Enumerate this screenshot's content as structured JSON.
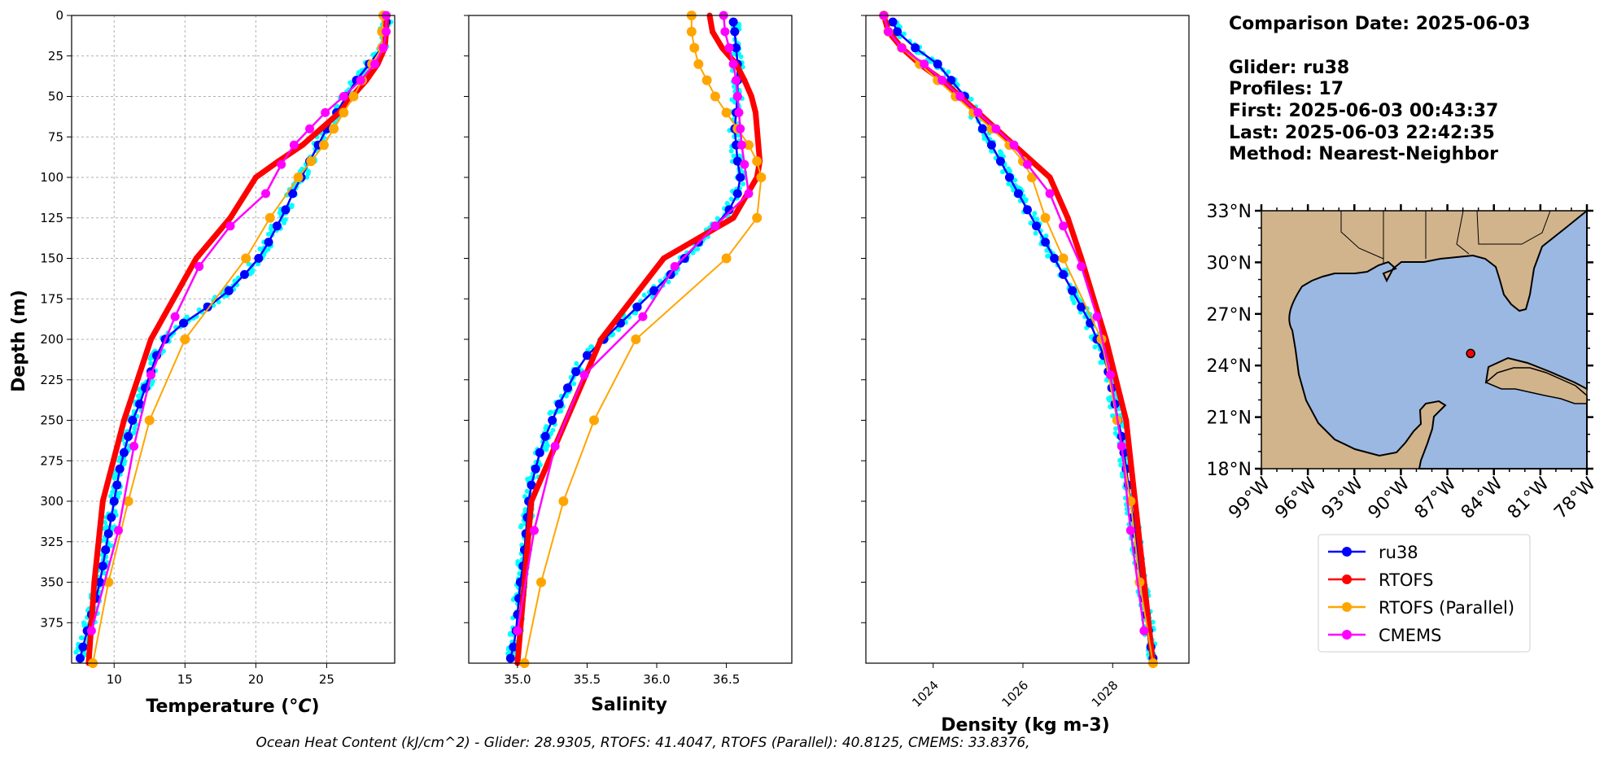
{
  "info": {
    "comparison_date": "Comparison Date: 2025-06-03",
    "glider": "Glider: ru38",
    "profiles": "Profiles: 17",
    "first": "First: 2025-06-03 00:43:37",
    "last": "Last: 2025-06-03 22:42:35",
    "method": "Method: Nearest-Neighbor"
  },
  "footer": "Ocean Heat Content (kJ/cm^2) - Glider: 28.9305,  RTOFS: 41.4047,  RTOFS (Parallel): 40.8125,  CMEMS: 33.8376,",
  "colors": {
    "glider": "#0000ff",
    "glider_raw": "#00ffff",
    "rtofs": "#ff0000",
    "rtofs_parallel": "#ffa500",
    "cmems": "#ff00ff",
    "land": "#d2b48c",
    "ocean": "#9bb8e2",
    "grid": "#b0b0b0"
  },
  "legend": [
    "ru38",
    "RTOFS",
    "RTOFS (Parallel)",
    "CMEMS"
  ],
  "map": {
    "lat_ticks": [
      "33°N",
      "30°N",
      "27°N",
      "24°N",
      "21°N",
      "18°N"
    ],
    "lon_ticks": [
      "99°W",
      "96°W",
      "93°W",
      "90°W",
      "87°W",
      "84°W",
      "81°W",
      "78°W"
    ],
    "lat_range": [
      18,
      33
    ],
    "lon_range": [
      -99,
      -78
    ],
    "glider_position": [
      -85.5,
      24.7
    ]
  },
  "chart_data": [
    {
      "type": "line",
      "xlabel": "Temperature (°C)",
      "ylabel": "Depth (m)",
      "xlim": [
        7,
        29.8
      ],
      "ylim": [
        400,
        0
      ],
      "xticks": [
        10,
        15,
        20,
        25
      ],
      "yticks": [
        0,
        25,
        50,
        75,
        100,
        125,
        150,
        175,
        200,
        225,
        250,
        275,
        300,
        325,
        350,
        375
      ],
      "grid": true,
      "series": [
        {
          "name": "ru38",
          "depth": [
            4,
            10,
            20,
            30,
            40,
            50,
            60,
            70,
            80,
            90,
            100,
            110,
            120,
            130,
            140,
            150,
            160,
            170,
            180,
            190,
            200,
            210,
            220,
            230,
            240,
            250,
            260,
            270,
            280,
            290,
            300,
            310,
            320,
            330,
            340,
            350,
            360,
            370,
            380,
            390,
            397
          ],
          "values": [
            29.2,
            29.1,
            28.9,
            28.0,
            27.1,
            26.4,
            25.7,
            25.0,
            24.4,
            23.8,
            23.2,
            22.6,
            22.1,
            21.5,
            20.9,
            20.2,
            19.2,
            18.1,
            16.6,
            14.9,
            13.6,
            13.0,
            12.6,
            12.2,
            11.8,
            11.3,
            11.0,
            10.7,
            10.4,
            10.2,
            10.0,
            9.8,
            9.6,
            9.4,
            9.2,
            9.0,
            8.7,
            8.4,
            8.1,
            7.8,
            7.6
          ]
        },
        {
          "name": "RTOFS",
          "depth": [
            0,
            10,
            20,
            30,
            40,
            50,
            60,
            70,
            80,
            90,
            100,
            125,
            150,
            200,
            250,
            300,
            350,
            400
          ],
          "values": [
            29.2,
            29.2,
            29.1,
            28.6,
            27.8,
            26.8,
            25.9,
            24.6,
            23.3,
            21.6,
            20.0,
            18.2,
            15.8,
            12.6,
            10.7,
            9.2,
            8.6,
            8.2
          ]
        },
        {
          "name": "RTOFS (Parallel)",
          "depth": [
            0,
            10,
            20,
            30,
            40,
            50,
            60,
            70,
            80,
            90,
            100,
            125,
            150,
            200,
            250,
            300,
            350,
            400
          ],
          "values": [
            29.0,
            28.9,
            28.9,
            28.2,
            27.5,
            26.9,
            26.2,
            25.5,
            24.8,
            23.9,
            23.0,
            21.0,
            19.3,
            15.0,
            12.5,
            11.0,
            9.6,
            8.5
          ]
        },
        {
          "name": "CMEMS",
          "depth": [
            0,
            10,
            20,
            30,
            40,
            50,
            60,
            70,
            80,
            92,
            110,
            130,
            155,
            186,
            222,
            266,
            318,
            380
          ],
          "values": [
            29.2,
            29.2,
            29.0,
            28.4,
            27.4,
            26.2,
            24.9,
            23.8,
            22.7,
            21.8,
            20.7,
            18.2,
            16.0,
            14.3,
            12.6,
            11.4,
            10.3,
            8.4
          ]
        }
      ]
    },
    {
      "type": "line",
      "xlabel": "Salinity",
      "xlim": [
        34.65,
        36.97
      ],
      "ylim": [
        400,
        0
      ],
      "xticks": [
        35.0,
        35.5,
        36.0,
        36.5
      ],
      "grid": false,
      "series": [
        {
          "name": "ru38",
          "depth": [
            4,
            10,
            20,
            30,
            40,
            50,
            60,
            70,
            80,
            90,
            100,
            110,
            120,
            130,
            140,
            150,
            160,
            170,
            180,
            190,
            200,
            210,
            220,
            230,
            240,
            250,
            260,
            270,
            280,
            290,
            300,
            310,
            320,
            330,
            340,
            350,
            360,
            370,
            380,
            390,
            397
          ],
          "values": [
            36.55,
            36.56,
            36.57,
            36.58,
            36.58,
            36.58,
            36.57,
            36.56,
            36.57,
            36.58,
            36.6,
            36.58,
            36.52,
            36.42,
            36.3,
            36.2,
            36.1,
            35.98,
            35.86,
            35.74,
            35.62,
            35.5,
            35.42,
            35.36,
            35.3,
            35.25,
            35.2,
            35.16,
            35.13,
            35.1,
            35.08,
            35.07,
            35.06,
            35.05,
            35.04,
            35.02,
            35.01,
            35.0,
            34.99,
            34.97,
            34.95
          ]
        },
        {
          "name": "RTOFS",
          "depth": [
            0,
            10,
            20,
            30,
            40,
            50,
            60,
            70,
            80,
            90,
            100,
            125,
            150,
            200,
            250,
            300,
            350,
            400
          ],
          "values": [
            36.38,
            36.4,
            36.47,
            36.57,
            36.63,
            36.68,
            36.71,
            36.72,
            36.73,
            36.74,
            36.72,
            36.55,
            36.05,
            35.6,
            35.35,
            35.1,
            35.05,
            35.0
          ]
        },
        {
          "name": "RTOFS (Parallel)",
          "depth": [
            0,
            10,
            20,
            30,
            40,
            50,
            60,
            70,
            80,
            90,
            100,
            125,
            150,
            200,
            250,
            300,
            350,
            400
          ],
          "values": [
            36.25,
            36.25,
            36.27,
            36.3,
            36.36,
            36.42,
            36.5,
            36.58,
            36.66,
            36.72,
            36.75,
            36.72,
            36.5,
            35.85,
            35.55,
            35.33,
            35.17,
            35.05
          ]
        },
        {
          "name": "CMEMS",
          "depth": [
            0,
            10,
            20,
            30,
            40,
            50,
            60,
            70,
            80,
            92,
            110,
            130,
            155,
            186,
            222,
            266,
            318,
            380
          ],
          "values": [
            36.48,
            36.49,
            36.52,
            36.55,
            36.57,
            36.58,
            36.59,
            36.6,
            36.61,
            36.63,
            36.66,
            36.42,
            36.13,
            35.9,
            35.48,
            35.27,
            35.12,
            35.0
          ]
        }
      ]
    },
    {
      "type": "line",
      "xlabel": "Density (kg m-3)",
      "xlim": [
        1022.5,
        1029.7
      ],
      "ylim": [
        400,
        0
      ],
      "xticks": [
        1024,
        1026,
        1028
      ],
      "grid": false,
      "series": [
        {
          "name": "ru38",
          "depth": [
            4,
            10,
            20,
            30,
            40,
            50,
            60,
            70,
            80,
            90,
            100,
            110,
            120,
            130,
            140,
            150,
            160,
            170,
            180,
            190,
            200,
            210,
            220,
            230,
            240,
            250,
            260,
            270,
            280,
            290,
            300,
            310,
            320,
            330,
            340,
            350,
            360,
            370,
            380,
            390,
            397
          ],
          "values": [
            1023.1,
            1023.2,
            1023.6,
            1024.1,
            1024.4,
            1024.7,
            1024.9,
            1025.1,
            1025.3,
            1025.5,
            1025.7,
            1025.9,
            1026.1,
            1026.3,
            1026.5,
            1026.7,
            1026.9,
            1027.1,
            1027.3,
            1027.5,
            1027.65,
            1027.8,
            1027.9,
            1027.98,
            1028.05,
            1028.12,
            1028.2,
            1028.25,
            1028.3,
            1028.35,
            1028.4,
            1028.45,
            1028.5,
            1028.55,
            1028.6,
            1028.65,
            1028.7,
            1028.75,
            1028.8,
            1028.85,
            1028.9
          ]
        },
        {
          "name": "RTOFS",
          "depth": [
            0,
            10,
            20,
            30,
            40,
            50,
            60,
            70,
            80,
            90,
            100,
            125,
            150,
            200,
            250,
            300,
            350,
            400
          ],
          "values": [
            1022.9,
            1023.0,
            1023.3,
            1023.7,
            1024.2,
            1024.6,
            1025.0,
            1025.4,
            1025.8,
            1026.2,
            1026.6,
            1027.0,
            1027.3,
            1027.85,
            1028.3,
            1028.5,
            1028.7,
            1028.9
          ]
        },
        {
          "name": "RTOFS (Parallel)",
          "depth": [
            0,
            10,
            20,
            30,
            40,
            50,
            60,
            70,
            80,
            90,
            100,
            125,
            150,
            200,
            250,
            300,
            350,
            400
          ],
          "values": [
            1022.9,
            1023.0,
            1023.3,
            1023.7,
            1024.1,
            1024.5,
            1024.9,
            1025.3,
            1025.7,
            1026.0,
            1026.2,
            1026.5,
            1026.9,
            1027.75,
            1028.1,
            1028.4,
            1028.6,
            1028.9
          ]
        },
        {
          "name": "CMEMS",
          "depth": [
            0,
            10,
            20,
            30,
            40,
            50,
            60,
            70,
            80,
            92,
            110,
            130,
            155,
            186,
            222,
            266,
            318,
            380
          ],
          "values": [
            1022.9,
            1023.0,
            1023.3,
            1023.8,
            1024.2,
            1024.6,
            1025.0,
            1025.4,
            1025.8,
            1026.1,
            1026.6,
            1026.9,
            1027.3,
            1027.65,
            1027.95,
            1028.2,
            1028.4,
            1028.7
          ]
        }
      ]
    }
  ]
}
